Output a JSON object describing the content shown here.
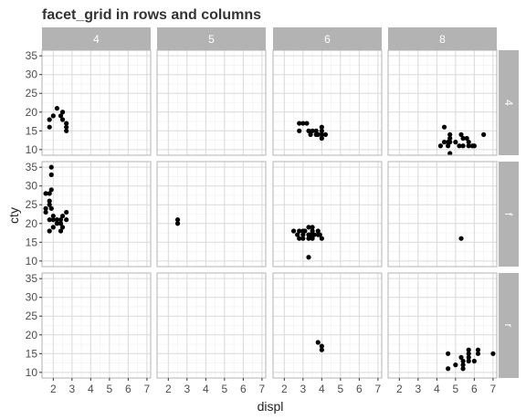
{
  "chart_data": {
    "type": "scatter",
    "title": "facet_grid in rows and columns",
    "xlabel": "displ",
    "ylabel": "cty",
    "xlim": [
      1.4,
      7.2
    ],
    "ylim": [
      8.5,
      36.5
    ],
    "x_ticks": [
      2,
      3,
      4,
      5,
      6,
      7
    ],
    "y_ticks": [
      10,
      15,
      20,
      25,
      30,
      35
    ],
    "grid": true,
    "facet_cols": [
      "4",
      "5",
      "6",
      "8"
    ],
    "facet_rows": [
      "4",
      "f",
      "r"
    ],
    "panels": [
      {
        "row": "4",
        "col": "4",
        "points": [
          [
            1.8,
            16
          ],
          [
            1.8,
            18
          ],
          [
            2.0,
            19
          ],
          [
            2.2,
            21
          ],
          [
            2.4,
            19
          ],
          [
            2.5,
            20
          ],
          [
            2.7,
            17
          ],
          [
            2.7,
            16
          ],
          [
            2.7,
            15
          ],
          [
            2.5,
            18
          ]
        ]
      },
      {
        "row": "4",
        "col": "5",
        "points": []
      },
      {
        "row": "4",
        "col": "6",
        "points": [
          [
            2.8,
            17
          ],
          [
            3.0,
            17
          ],
          [
            3.2,
            17
          ],
          [
            2.8,
            15
          ],
          [
            3.3,
            15
          ],
          [
            3.4,
            14
          ],
          [
            3.5,
            15
          ],
          [
            3.7,
            14
          ],
          [
            3.7,
            15
          ],
          [
            3.8,
            14
          ],
          [
            4.0,
            14
          ],
          [
            4.0,
            15
          ],
          [
            4.0,
            13
          ],
          [
            4.0,
            16
          ],
          [
            4.2,
            14
          ],
          [
            4.0,
            14
          ]
        ]
      },
      {
        "row": "4",
        "col": "8",
        "points": [
          [
            4.2,
            11
          ],
          [
            4.4,
            16
          ],
          [
            4.4,
            12
          ],
          [
            4.6,
            12
          ],
          [
            4.6,
            11
          ],
          [
            4.7,
            13
          ],
          [
            4.7,
            12
          ],
          [
            4.7,
            14
          ],
          [
            4.7,
            9
          ],
          [
            5.0,
            12
          ],
          [
            5.2,
            11
          ],
          [
            5.3,
            14
          ],
          [
            5.4,
            13
          ],
          [
            5.4,
            11
          ],
          [
            5.6,
            13
          ],
          [
            5.7,
            11
          ],
          [
            5.7,
            12
          ],
          [
            5.9,
            11
          ],
          [
            6.0,
            11
          ],
          [
            6.5,
            14
          ]
        ]
      },
      {
        "row": "f",
        "col": "4",
        "points": [
          [
            1.6,
            28
          ],
          [
            1.6,
            24
          ],
          [
            1.6,
            23
          ],
          [
            1.8,
            26
          ],
          [
            1.8,
            25
          ],
          [
            1.8,
            28
          ],
          [
            1.8,
            21
          ],
          [
            1.8,
            18
          ],
          [
            1.9,
            35
          ],
          [
            1.9,
            33
          ],
          [
            1.9,
            29
          ],
          [
            1.9,
            24
          ],
          [
            2.0,
            21
          ],
          [
            2.0,
            22
          ],
          [
            2.2,
            21
          ],
          [
            2.2,
            20
          ],
          [
            2.4,
            21
          ],
          [
            2.4,
            18
          ],
          [
            2.5,
            19
          ],
          [
            2.5,
            22
          ],
          [
            2.7,
            21
          ],
          [
            2.7,
            23
          ],
          [
            2.4,
            20
          ],
          [
            2.0,
            19
          ]
        ]
      },
      {
        "row": "f",
        "col": "5",
        "points": [
          [
            2.5,
            21
          ],
          [
            2.5,
            20
          ]
        ]
      },
      {
        "row": "f",
        "col": "6",
        "points": [
          [
            2.5,
            18
          ],
          [
            2.7,
            17
          ],
          [
            2.8,
            16
          ],
          [
            2.8,
            18
          ],
          [
            3.0,
            18
          ],
          [
            3.0,
            17
          ],
          [
            3.1,
            18
          ],
          [
            3.3,
            19
          ],
          [
            3.3,
            17
          ],
          [
            3.3,
            16
          ],
          [
            3.5,
            19
          ],
          [
            3.5,
            18
          ],
          [
            3.5,
            16
          ],
          [
            3.3,
            11
          ],
          [
            3.8,
            17
          ],
          [
            3.8,
            18
          ],
          [
            3.9,
            17
          ],
          [
            4.0,
            16
          ],
          [
            3.0,
            16
          ],
          [
            3.6,
            17
          ],
          [
            3.4,
            17
          ]
        ]
      },
      {
        "row": "f",
        "col": "8",
        "points": [
          [
            5.3,
            16
          ]
        ]
      },
      {
        "row": "r",
        "col": "4",
        "points": []
      },
      {
        "row": "r",
        "col": "5",
        "points": []
      },
      {
        "row": "r",
        "col": "6",
        "points": [
          [
            3.8,
            18
          ],
          [
            4.0,
            17
          ],
          [
            4.0,
            16
          ]
        ]
      },
      {
        "row": "r",
        "col": "8",
        "points": [
          [
            4.6,
            15
          ],
          [
            4.6,
            11
          ],
          [
            5.0,
            12
          ],
          [
            5.3,
            14
          ],
          [
            5.4,
            11
          ],
          [
            5.4,
            12
          ],
          [
            5.4,
            13
          ],
          [
            5.7,
            14
          ],
          [
            5.7,
            16
          ],
          [
            5.7,
            15
          ],
          [
            6.0,
            13
          ],
          [
            6.2,
            16
          ],
          [
            6.2,
            15
          ],
          [
            7.0,
            15
          ],
          [
            5.7,
            13
          ]
        ]
      }
    ]
  },
  "colors": {
    "strip_bg": "#b3b3b3",
    "panel_border": "#b3b3b3",
    "grid_major": "#d9d9d9",
    "grid_minor": "#efefef",
    "point": "#000000"
  }
}
